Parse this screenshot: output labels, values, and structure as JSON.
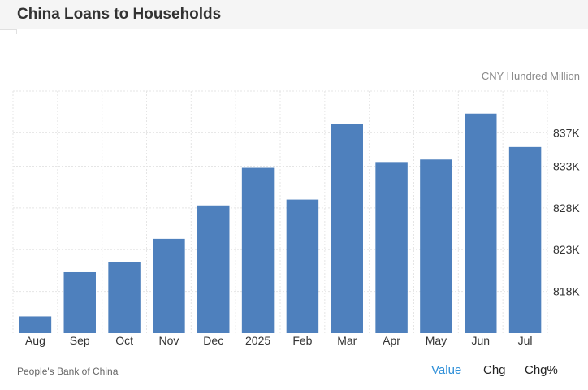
{
  "header": {
    "title": "China Loans to Households"
  },
  "unit_label": "CNY Hundred Million",
  "source": "People's Bank of China",
  "toggles": {
    "value": "Value",
    "chg": "Chg",
    "chg_pct": "Chg%",
    "active": "value"
  },
  "colors": {
    "bar": "#4e80bd",
    "grid": "#e5e5e5",
    "active_toggle": "#2e8fd8"
  },
  "chart_data": {
    "type": "bar",
    "categories": [
      "Aug",
      "Sep",
      "Oct",
      "Nov",
      "Dec",
      "2025",
      "Feb",
      "Mar",
      "Apr",
      "May",
      "Jun",
      "Jul"
    ],
    "values": [
      815000,
      820300,
      821500,
      824300,
      828300,
      832800,
      829000,
      838100,
      833500,
      833800,
      839300,
      835300
    ],
    "y_axis_position": "right",
    "y_ticks": [
      818000,
      823000,
      828000,
      833000,
      837000
    ],
    "y_tick_labels": [
      "818K",
      "823K",
      "828K",
      "833K",
      "837K"
    ],
    "ylim": [
      813000,
      842000
    ],
    "grid": true,
    "legend": false
  }
}
